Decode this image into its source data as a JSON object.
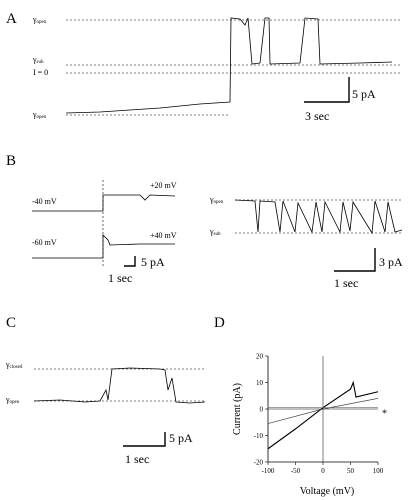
{
  "panels": {
    "A": {
      "letter": "A",
      "level_open_top": {
        "base": "γ",
        "sub": "open"
      },
      "level_sub": {
        "base": "γ",
        "sub": "sub"
      },
      "level_zero": "I = 0",
      "level_open_bottom": {
        "base": "γ",
        "sub": "open"
      },
      "scale_current": "5 pA",
      "scale_time": "3 sec"
    },
    "B": {
      "letter": "B",
      "v_minus40": "-40 mV",
      "v_plus20": "+20 mV",
      "v_minus60": "-60 mV",
      "v_plus40": "+40 mV",
      "scale_left_current": "5 pA",
      "scale_left_time": "1 sec",
      "level_open": {
        "base": "γ",
        "sub": "open"
      },
      "level_sub": {
        "base": "γ",
        "sub": "sub"
      },
      "scale_right_current": "3 pA",
      "scale_right_time": "1 sec"
    },
    "C": {
      "letter": "C",
      "level_closed": {
        "base": "γ",
        "sub": "closed"
      },
      "level_open": {
        "base": "γ",
        "sub": "open"
      },
      "scale_current": "5 pA",
      "scale_time": "1 sec"
    },
    "D": {
      "letter": "D",
      "asterisk": "*"
    }
  },
  "chart_data": {
    "type": "line",
    "title": "D",
    "xlabel": "Voltage (mV)",
    "ylabel": "Current (pA)",
    "xlim": [
      -100,
      100
    ],
    "ylim": [
      -20,
      20
    ],
    "x_ticks": [
      -100,
      -50,
      0,
      50,
      100
    ],
    "y_ticks": [
      -20,
      -10,
      0,
      10,
      20
    ],
    "x_tick_labels": [
      "-100",
      "-50",
      "0",
      "50",
      "100"
    ],
    "y_tick_labels": [
      "-20",
      "-10",
      "0",
      "10",
      "20"
    ],
    "grid": false,
    "annotation": "*",
    "series": [
      {
        "x": [
          -100,
          -50,
          0,
          50,
          55,
          60,
          100
        ],
        "y": [
          -15,
          -7.5,
          0.5,
          7.5,
          10,
          4.5,
          6.5
        ]
      },
      {
        "x": [
          -100,
          0,
          100
        ],
        "y": [
          -5.5,
          0,
          4
        ]
      },
      {
        "x": [
          -100,
          100
        ],
        "y": [
          0.5,
          0.5
        ]
      }
    ]
  }
}
